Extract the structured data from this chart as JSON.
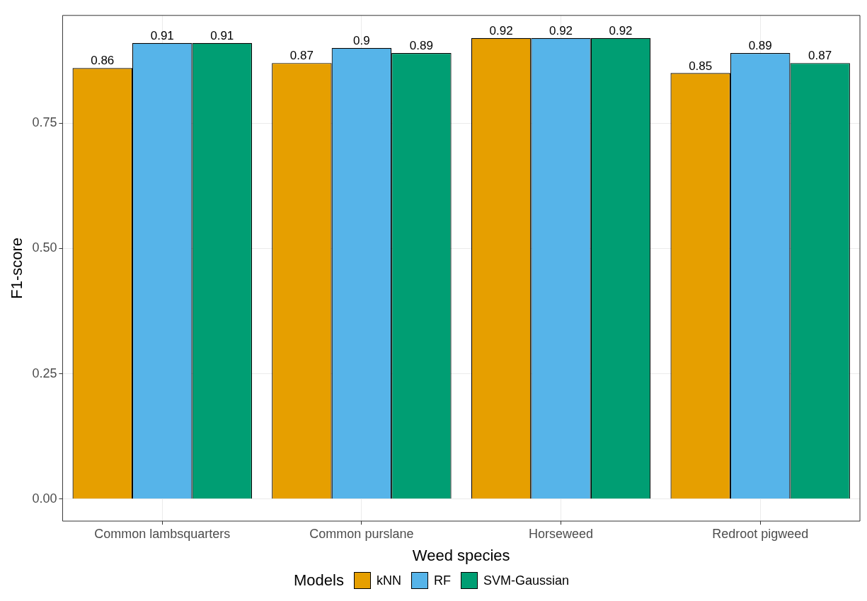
{
  "chart_data": {
    "type": "bar",
    "xlabel": "Weed species",
    "ylabel": "F1-score",
    "legend_title": "Models",
    "categories": [
      "Common lambsquarters",
      "Common purslane",
      "Horseweed",
      "Redroot pigweed"
    ],
    "series": [
      {
        "name": "kNN",
        "color": "#e69f00",
        "values": [
          0.86,
          0.87,
          0.92,
          0.85
        ]
      },
      {
        "name": "RF",
        "color": "#56b4e9",
        "values": [
          0.91,
          0.9,
          0.92,
          0.89
        ]
      },
      {
        "name": "SVM-Gaussian",
        "color": "#009e73",
        "values": [
          0.91,
          0.89,
          0.92,
          0.87
        ]
      }
    ],
    "ylim": [
      -0.044,
      0.965
    ],
    "yticks": [
      {
        "value": 0,
        "label": "0.00"
      },
      {
        "value": 0.25,
        "label": "0.25"
      },
      {
        "value": 0.5,
        "label": "0.50"
      },
      {
        "value": 0.75,
        "label": "0.75"
      }
    ],
    "grid": true,
    "legend": "bottom",
    "data_labels": true
  }
}
